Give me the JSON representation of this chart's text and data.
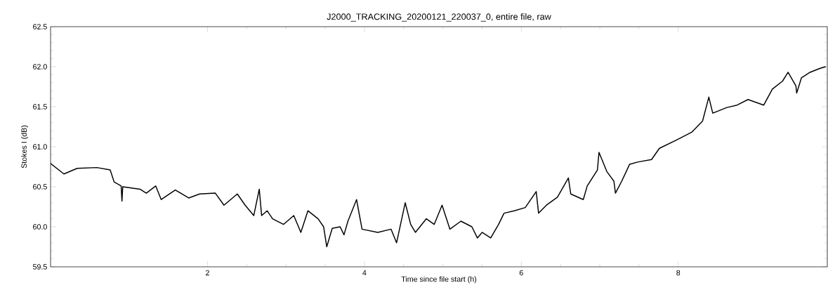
{
  "chart_data": {
    "type": "line",
    "title": "J2000_TRACKING_20200121_220037_0, entire file, raw",
    "xlabel": "Time since file start (h)",
    "ylabel": "Stokes I (dB)",
    "xlim": [
      0,
      9.9
    ],
    "ylim": [
      59.5,
      62.5
    ],
    "xticks": [
      2,
      4,
      6,
      8
    ],
    "yticks": [
      59.5,
      {
        "value": 60,
        "label": "60.0"
      },
      60.5,
      {
        "value": 61,
        "label": "61.0"
      },
      61.5,
      {
        "value": 62,
        "label": "62.0"
      },
      62.5
    ],
    "grid": false,
    "marker": "none",
    "line_style": "solid",
    "series": [
      {
        "color": "#000000",
        "x": [
          0,
          0.17,
          0.34,
          0.59,
          0.76,
          0.81,
          0.9,
          0.91,
          0.92,
          1.14,
          1.22,
          1.34,
          1.41,
          1.59,
          1.76,
          1.9,
          2.1,
          2.21,
          2.38,
          2.48,
          2.59,
          2.66,
          2.69,
          2.76,
          2.83,
          2.97,
          3.1,
          3.19,
          3.28,
          3.41,
          3.48,
          3.52,
          3.59,
          3.69,
          3.74,
          3.79,
          3.9,
          3.97,
          4.17,
          4.34,
          4.41,
          4.52,
          4.59,
          4.65,
          4.79,
          4.89,
          4.99,
          5.09,
          5.23,
          5.37,
          5.44,
          5.5,
          5.61,
          5.71,
          5.78,
          5.91,
          6.05,
          6.19,
          6.22,
          6.32,
          6.46,
          6.6,
          6.63,
          6.79,
          6.84,
          6.97,
          6.99,
          7.09,
          7.18,
          7.2,
          7.28,
          7.38,
          7.49,
          7.66,
          7.76,
          7.97,
          8.17,
          8.31,
          8.39,
          8.44,
          8.62,
          8.75,
          8.89,
          9.09,
          9.2,
          9.33,
          9.4,
          9.5,
          9.51,
          9.57,
          9.68,
          9.81,
          9.88
        ],
        "values": [
          60.79,
          60.66,
          60.73,
          60.74,
          60.71,
          60.56,
          60.51,
          60.32,
          60.5,
          60.47,
          60.42,
          60.51,
          60.34,
          60.46,
          60.36,
          60.41,
          60.42,
          60.27,
          60.41,
          60.27,
          60.14,
          60.47,
          60.14,
          60.2,
          60.1,
          60.03,
          60.14,
          59.93,
          60.2,
          60.1,
          60.0,
          59.75,
          59.98,
          60.0,
          59.9,
          60.07,
          60.34,
          59.97,
          59.93,
          59.97,
          59.8,
          60.3,
          60.03,
          59.93,
          60.1,
          60.03,
          60.27,
          59.97,
          60.07,
          60.0,
          59.86,
          59.93,
          59.86,
          60.03,
          60.17,
          60.2,
          60.24,
          60.44,
          60.17,
          60.27,
          60.37,
          60.61,
          60.41,
          60.34,
          60.51,
          60.71,
          60.93,
          60.69,
          60.57,
          60.42,
          60.57,
          60.78,
          60.81,
          60.84,
          60.98,
          61.08,
          61.18,
          61.32,
          61.62,
          61.42,
          61.49,
          61.52,
          61.59,
          61.52,
          61.72,
          61.82,
          61.93,
          61.76,
          61.67,
          61.86,
          61.93,
          61.98,
          62.0
        ]
      }
    ]
  }
}
